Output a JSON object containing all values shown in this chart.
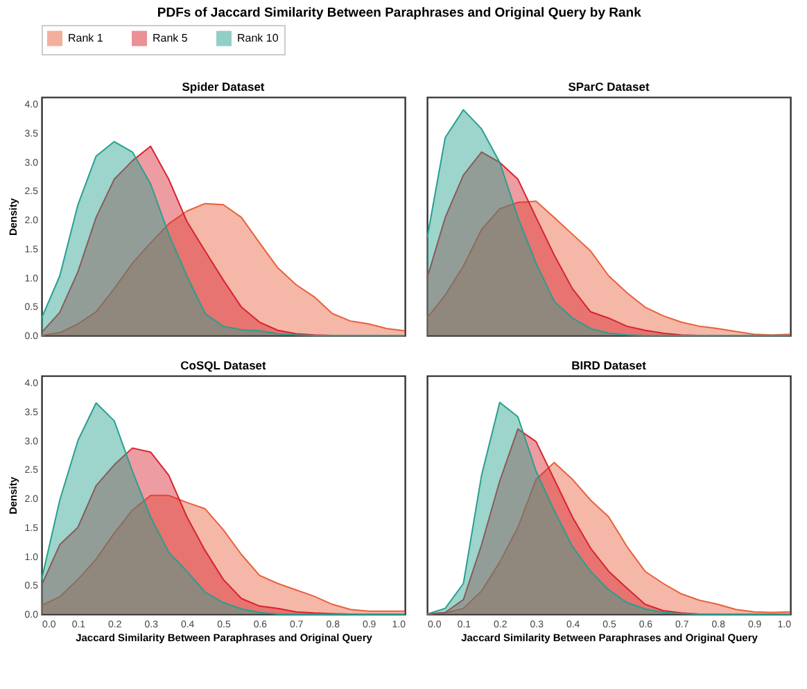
{
  "chart_data": [
    {
      "type": "area",
      "title": "Spider Dataset",
      "annotations": [
        "PDFs of Jaccard Similarity Between Paraphrases and Original Query by Rank"
      ],
      "ylabel": "Density",
      "tick_labels": "y",
      "legend": "top",
      "grid": false,
      "x": [
        0,
        0.05,
        0.1,
        0.15,
        0.2,
        0.25,
        0.3,
        0.35,
        0.4,
        0.45,
        0.5,
        0.55,
        0.6,
        0.65,
        0.7,
        0.75,
        0.8,
        0.85,
        0.9,
        0.95,
        1.0
      ],
      "xlim": [
        0,
        1
      ],
      "ylim": [
        0,
        4.12
      ],
      "yticks": [
        {
          "value": 0,
          "label": "0.0"
        },
        {
          "value": 0.5,
          "label": "0.5"
        },
        {
          "value": 1,
          "label": "1.0"
        },
        {
          "value": 1.5,
          "label": "1.5"
        },
        {
          "value": 2,
          "label": "2.0"
        },
        {
          "value": 2.5,
          "label": "2.5"
        },
        {
          "value": 3,
          "label": "3.0"
        },
        {
          "value": 3.5,
          "label": "3.5"
        },
        {
          "value": 4,
          "label": "4.0"
        }
      ],
      "series": [
        {
          "name": "Rank 1",
          "color": "#e8603c",
          "values": [
            0.0,
            0.05,
            0.2,
            0.41,
            0.81,
            1.25,
            1.6,
            1.93,
            2.15,
            2.28,
            2.26,
            2.04,
            1.6,
            1.17,
            0.88,
            0.67,
            0.38,
            0.25,
            0.2,
            0.12,
            0.08
          ]
        },
        {
          "name": "Rank 5",
          "color": "#d8232f",
          "values": [
            0.05,
            0.4,
            1.1,
            2.04,
            2.7,
            3.02,
            3.27,
            2.7,
            1.97,
            1.46,
            0.96,
            0.49,
            0.23,
            0.09,
            0.03,
            0.01,
            0,
            0,
            0,
            0,
            0
          ]
        },
        {
          "name": "Rank 10",
          "color": "#26a08f",
          "values": [
            0.3,
            1.03,
            2.26,
            3.1,
            3.35,
            3.17,
            2.62,
            1.75,
            1.03,
            0.38,
            0.16,
            0.1,
            0.08,
            0.03,
            0.01,
            0,
            0,
            0,
            0,
            0,
            0
          ]
        }
      ]
    },
    {
      "type": "area",
      "title": "SParC Dataset",
      "tick_labels": false,
      "grid": false,
      "x": [
        0,
        0.05,
        0.1,
        0.15,
        0.2,
        0.25,
        0.3,
        0.35,
        0.4,
        0.45,
        0.5,
        0.55,
        0.6,
        0.65,
        0.7,
        0.75,
        0.8,
        0.85,
        0.9,
        0.95,
        1.0
      ],
      "xlim": [
        0,
        1
      ],
      "ylim": [
        0,
        4.12
      ],
      "series": [
        {
          "name": "Rank 1",
          "color": "#e8603c",
          "values": [
            0.3,
            0.7,
            1.2,
            1.83,
            2.19,
            2.3,
            2.32,
            2.04,
            1.75,
            1.46,
            1.03,
            0.74,
            0.49,
            0.34,
            0.23,
            0.16,
            0.12,
            0.07,
            0.02,
            0.01,
            0.02
          ]
        },
        {
          "name": "Rank 5",
          "color": "#d8232f",
          "values": [
            0.99,
            2.04,
            2.77,
            3.17,
            2.99,
            2.7,
            2.04,
            1.39,
            0.81,
            0.41,
            0.3,
            0.16,
            0.09,
            0.04,
            0.01,
            0,
            0,
            0,
            0,
            0,
            0
          ]
        },
        {
          "name": "Rank 10",
          "color": "#26a08f",
          "values": [
            1.68,
            3.42,
            3.9,
            3.57,
            2.99,
            2.04,
            1.25,
            0.59,
            0.3,
            0.12,
            0.04,
            0.01,
            0,
            0,
            0,
            0,
            0,
            0,
            0,
            0,
            0
          ]
        }
      ]
    },
    {
      "type": "area",
      "title": "CoSQL Dataset",
      "ylabel": "Density",
      "xlabel": "Jaccard Similarity Between Paraphrases and Original Query",
      "grid": false,
      "x": [
        0,
        0.05,
        0.1,
        0.15,
        0.2,
        0.25,
        0.3,
        0.35,
        0.4,
        0.45,
        0.5,
        0.55,
        0.6,
        0.65,
        0.7,
        0.75,
        0.8,
        0.85,
        0.9,
        0.95,
        1.0
      ],
      "xlim": [
        0,
        1
      ],
      "ylim": [
        0,
        4.12
      ],
      "xticks": [
        {
          "value": 0,
          "label": "0.0"
        },
        {
          "value": 0.1,
          "label": "0.1"
        },
        {
          "value": 0.2,
          "label": "0.2"
        },
        {
          "value": 0.3,
          "label": "0.3"
        },
        {
          "value": 0.4,
          "label": "0.4"
        },
        {
          "value": 0.5,
          "label": "0.5"
        },
        {
          "value": 0.6,
          "label": "0.6"
        },
        {
          "value": 0.7,
          "label": "0.7"
        },
        {
          "value": 0.8,
          "label": "0.8"
        },
        {
          "value": 0.9,
          "label": "0.9"
        },
        {
          "value": 1,
          "label": "1.0"
        }
      ],
      "yticks": [
        {
          "value": 0,
          "label": "0.0"
        },
        {
          "value": 0.5,
          "label": "0.5"
        },
        {
          "value": 1,
          "label": "1.0"
        },
        {
          "value": 1.5,
          "label": "1.5"
        },
        {
          "value": 2,
          "label": "2.0"
        },
        {
          "value": 2.5,
          "label": "2.5"
        },
        {
          "value": 3,
          "label": "3.0"
        },
        {
          "value": 3.5,
          "label": "3.5"
        },
        {
          "value": 4,
          "label": "4.0"
        }
      ],
      "series": [
        {
          "name": "Rank 1",
          "color": "#e8603c",
          "values": [
            0.15,
            0.3,
            0.6,
            0.95,
            1.4,
            1.8,
            2.05,
            2.05,
            1.93,
            1.82,
            1.46,
            1.03,
            0.67,
            0.53,
            0.42,
            0.31,
            0.17,
            0.08,
            0.05,
            0.05,
            0.05
          ]
        },
        {
          "name": "Rank 5",
          "color": "#d8232f",
          "values": [
            0.5,
            1.2,
            1.5,
            2.22,
            2.58,
            2.87,
            2.8,
            2.4,
            1.68,
            1.1,
            0.6,
            0.27,
            0.14,
            0.1,
            0.04,
            0.02,
            0.01,
            0,
            0,
            0,
            0
          ]
        },
        {
          "name": "Rank 10",
          "color": "#26a08f",
          "values": [
            0.6,
            1.97,
            3.0,
            3.65,
            3.34,
            2.47,
            1.68,
            1.07,
            0.74,
            0.38,
            0.2,
            0.09,
            0.03,
            0,
            0,
            0,
            0,
            0,
            0,
            0,
            0
          ]
        }
      ]
    },
    {
      "type": "area",
      "title": "BIRD Dataset",
      "xlabel": "Jaccard Similarity Between Paraphrases and Original Query",
      "tick_labels": "x",
      "grid": false,
      "x": [
        0,
        0.05,
        0.1,
        0.15,
        0.2,
        0.25,
        0.3,
        0.35,
        0.4,
        0.45,
        0.5,
        0.55,
        0.6,
        0.65,
        0.7,
        0.75,
        0.8,
        0.85,
        0.9,
        0.95,
        1.0
      ],
      "xlim": [
        0,
        1
      ],
      "ylim": [
        0,
        4.12
      ],
      "xticks": [
        {
          "value": 0,
          "label": "0.0"
        },
        {
          "value": 0.1,
          "label": "0.1"
        },
        {
          "value": 0.2,
          "label": "0.2"
        },
        {
          "value": 0.3,
          "label": "0.3"
        },
        {
          "value": 0.4,
          "label": "0.4"
        },
        {
          "value": 0.5,
          "label": "0.5"
        },
        {
          "value": 0.6,
          "label": "0.6"
        },
        {
          "value": 0.7,
          "label": "0.7"
        },
        {
          "value": 0.8,
          "label": "0.8"
        },
        {
          "value": 0.9,
          "label": "0.9"
        },
        {
          "value": 1,
          "label": "1.0"
        }
      ],
      "series": [
        {
          "name": "Rank 1",
          "color": "#e8603c",
          "values": [
            0,
            0.02,
            0.1,
            0.4,
            0.9,
            1.5,
            2.33,
            2.62,
            2.33,
            1.97,
            1.68,
            1.17,
            0.74,
            0.53,
            0.35,
            0.24,
            0.17,
            0.08,
            0.04,
            0.03,
            0.04
          ]
        },
        {
          "name": "Rank 5",
          "color": "#d8232f",
          "values": [
            0,
            0.03,
            0.25,
            1.2,
            2.3,
            3.2,
            2.98,
            2.33,
            1.68,
            1.14,
            0.74,
            0.45,
            0.17,
            0.06,
            0.02,
            0,
            0,
            0,
            0,
            0,
            0
          ]
        },
        {
          "name": "Rank 10",
          "color": "#26a08f",
          "values": [
            0,
            0.1,
            0.53,
            2.4,
            3.66,
            3.41,
            2.47,
            1.79,
            1.17,
            0.74,
            0.42,
            0.2,
            0.09,
            0.03,
            0.01,
            0,
            0,
            0,
            0,
            0,
            0
          ]
        }
      ]
    }
  ]
}
